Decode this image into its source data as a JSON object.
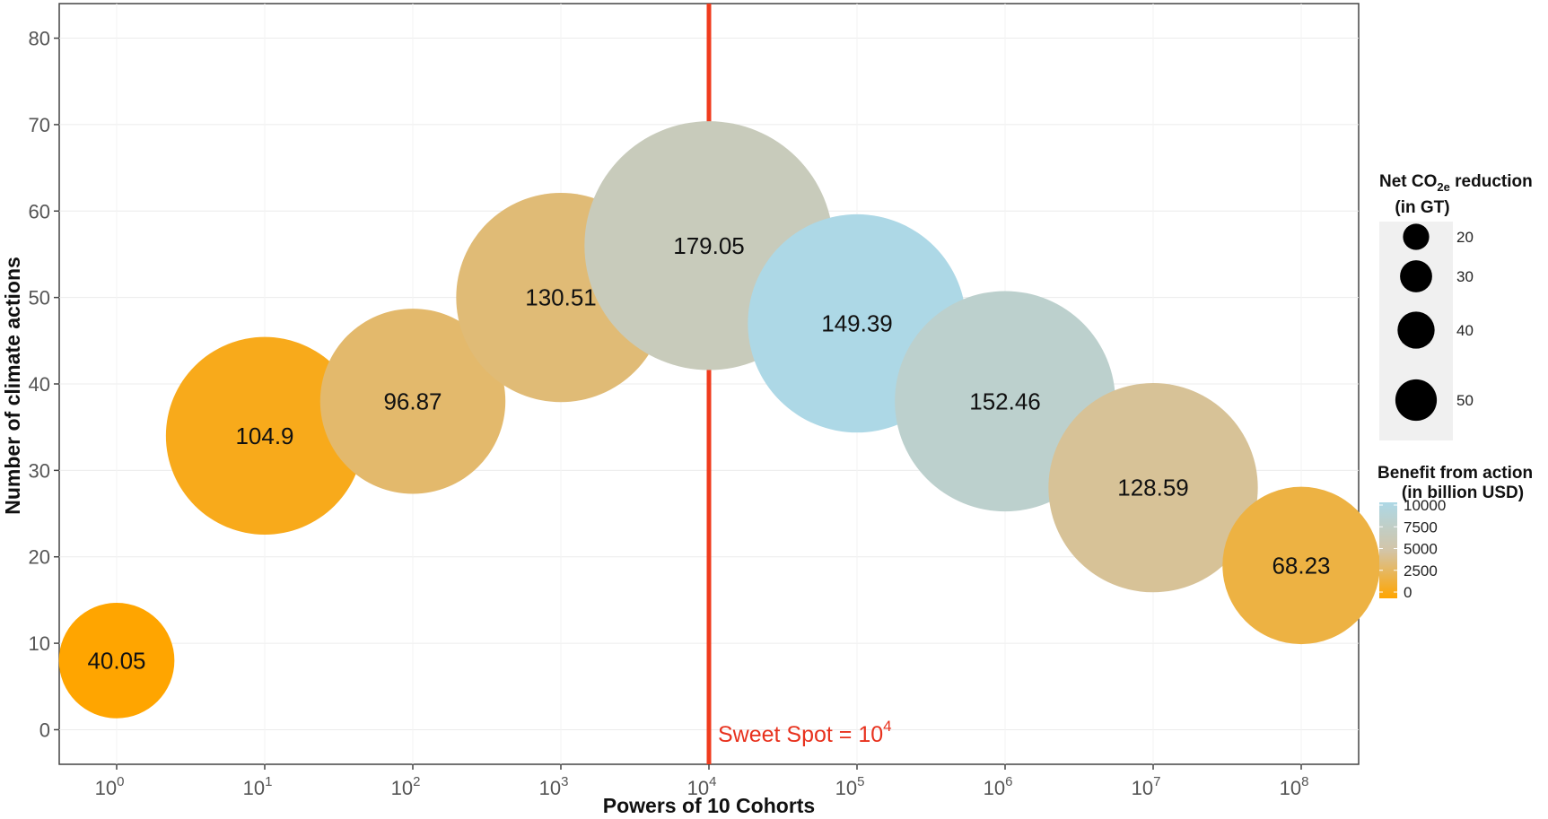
{
  "chart_data": {
    "type": "scatter",
    "xlabel": "Powers of 10 Cohorts",
    "ylabel": "Number of climate actions",
    "x_base": "10",
    "x_exponents": [
      "0",
      "1",
      "2",
      "3",
      "4",
      "5",
      "6",
      "7",
      "8"
    ],
    "ylim": [
      -4,
      84
    ],
    "y_ticks": [
      "0",
      "10",
      "20",
      "30",
      "40",
      "50",
      "60",
      "70",
      "80"
    ],
    "points": [
      {
        "exponent": 0,
        "y": 8,
        "label": "40.05",
        "size": 14,
        "benefit": 0
      },
      {
        "exponent": 1,
        "y": 34,
        "label": "104.9",
        "size": 41,
        "benefit": 800
      },
      {
        "exponent": 2,
        "y": 38,
        "label": "96.87",
        "size": 36,
        "benefit": 3200
      },
      {
        "exponent": 3,
        "y": 50,
        "label": "130.51",
        "size": 46,
        "benefit": 3500
      },
      {
        "exponent": 4,
        "y": 56,
        "label": "179.05",
        "size": 65,
        "benefit": 6500
      },
      {
        "exponent": 5,
        "y": 47,
        "label": "149.39",
        "size": 50,
        "benefit": 10000
      },
      {
        "exponent": 6,
        "y": 38,
        "label": "152.46",
        "size": 51,
        "benefit": 8000
      },
      {
        "exponent": 7,
        "y": 28,
        "label": "128.59",
        "size": 46,
        "benefit": 4500
      },
      {
        "exponent": 8,
        "y": 19,
        "label": "68.23",
        "size": 26,
        "benefit": 2000
      }
    ],
    "reference_line": {
      "exponent": 4,
      "label_prefix": "Sweet Spot = 10",
      "label_exp": "4",
      "color": "#f03c1e"
    },
    "size_legend": {
      "title_line1_a": "Net CO",
      "title_line1_sub": "2e",
      "title_line1_b": " reduction",
      "title_line2": "(in GT)",
      "entries": [
        {
          "value": 20,
          "label": "20"
        },
        {
          "value": 30,
          "label": "30"
        },
        {
          "value": 40,
          "label": "40"
        },
        {
          "value": 50,
          "label": "50"
        }
      ]
    },
    "color_legend": {
      "title_line1": "Benefit from action",
      "title_line2": "(in billion USD)",
      "ticks": [
        {
          "value": 10000,
          "label": "10000"
        },
        {
          "value": 7500,
          "label": "7500"
        },
        {
          "value": 5000,
          "label": "5000"
        },
        {
          "value": 2500,
          "label": "2500"
        },
        {
          "value": 0,
          "label": "0"
        }
      ],
      "range": [
        0,
        10000
      ]
    },
    "colors": {
      "low": "#ffa500",
      "mid": "#d3c5a8",
      "high": "#add8e6",
      "panel_border": "#333333",
      "grid": "#ffffff",
      "size_legend_bg": "#f0f0f0"
    }
  }
}
